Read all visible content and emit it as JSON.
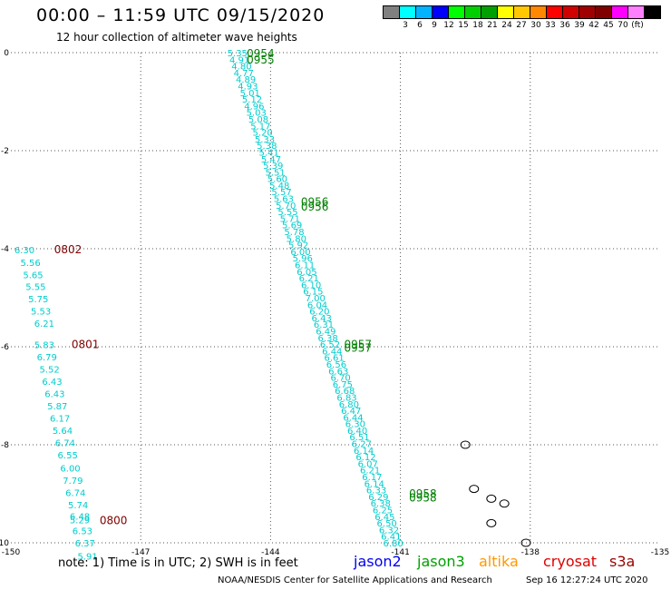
{
  "title": "00:00 – 11:59 UTC 09/15/2020",
  "subtitle": "12 hour collection of altimeter wave heights",
  "legend": {
    "colors": [
      "#808080",
      "#00ffff",
      "#00b4ff",
      "#0000ff",
      "#00ff00",
      "#00d000",
      "#00a000",
      "#ffff00",
      "#ffc800",
      "#ff8800",
      "#ff0000",
      "#d00000",
      "#a00000",
      "#800000",
      "#ff00ff",
      "#ff80ff",
      "#000000"
    ],
    "labels": [
      "3",
      "6",
      "9",
      "12",
      "15",
      "18",
      "21",
      "24",
      "27",
      "30",
      "33",
      "36",
      "39",
      "42",
      "45",
      "70",
      "(ft)"
    ]
  },
  "axes": {
    "x_ticks": [
      "-150",
      "-147",
      "-144",
      "-141",
      "-138",
      "-135"
    ],
    "y_ticks": [
      "0",
      "-2",
      "-4",
      "-6",
      "-8",
      "-10"
    ]
  },
  "chart_data": {
    "type": "scatter",
    "xlim": [
      -150,
      -135
    ],
    "ylim": [
      -10,
      0
    ],
    "grid": true,
    "tracks": [
      {
        "satellite": "jason3",
        "color": "#00cccc",
        "start": [
          -145.0,
          0.0
        ],
        "end": [
          -141.4,
          -10.0
        ],
        "swh": [
          "5.35",
          "4.91",
          "4.80",
          "4.77",
          "4.89",
          "4.93",
          "5.01",
          "5.12",
          "4.96",
          "5.03",
          "5.08",
          "5.17",
          "5.20",
          "5.33",
          "5.38",
          "5.41",
          "5.47",
          "5.39",
          "5.51",
          "5.60",
          "5.48",
          "5.57",
          "5.63",
          "5.70",
          "5.55",
          "5.71",
          "5.69",
          "5.78",
          "5.80",
          "5.92",
          "6.00",
          "5.96",
          "6.11",
          "6.05",
          "6.21",
          "6.10",
          "6.15",
          "7.00",
          "6.04",
          "6.20",
          "6.43",
          "6.31",
          "6.49",
          "6.38",
          "6.52",
          "6.44",
          "6.61",
          "6.56",
          "6.63",
          "6.70",
          "6.75",
          "6.68",
          "6.83",
          "6.80",
          "6.47",
          "6.44",
          "6.30",
          "6.40",
          "6.51",
          "6.27",
          "6.14",
          "6.12",
          "6.07",
          "6.21",
          "6.17",
          "6.14",
          "6.33",
          "6.29",
          "6.38",
          "6.25",
          "6.45",
          "6.50",
          "6.32",
          "6.41",
          "6.80"
        ],
        "time_labels": [
          {
            "text": "0954",
            "x": -144.55,
            "y": -0.02
          },
          {
            "text": "0955",
            "x": -144.55,
            "y": -0.15
          },
          {
            "text": "0956",
            "x": -143.3,
            "y": -3.05
          },
          {
            "text": "0956",
            "x": -143.3,
            "y": -3.15
          },
          {
            "text": "0957",
            "x": -142.3,
            "y": -5.95
          },
          {
            "text": "0957",
            "x": -142.3,
            "y": -6.03
          },
          {
            "text": "0958",
            "x": -140.8,
            "y": -9.0
          },
          {
            "text": "0958",
            "x": -140.8,
            "y": -9.08
          }
        ]
      },
      {
        "satellite": "cryosat",
        "color": "#00cccc",
        "points": [
          {
            "x": -149.92,
            "y": -4.02,
            "v": "6.30"
          },
          {
            "x": -149.78,
            "y": -4.28,
            "v": "5.56"
          },
          {
            "x": -149.72,
            "y": -4.53,
            "v": "5.65"
          },
          {
            "x": -149.66,
            "y": -4.77,
            "v": "5.55"
          },
          {
            "x": -149.6,
            "y": -5.02,
            "v": "5.75"
          },
          {
            "x": -149.54,
            "y": -5.27,
            "v": "5.53"
          },
          {
            "x": -149.46,
            "y": -5.52,
            "v": "6.21"
          },
          {
            "x": -149.46,
            "y": -5.95,
            "v": "5.83"
          },
          {
            "x": -149.4,
            "y": -6.2,
            "v": "6.79"
          },
          {
            "x": -149.34,
            "y": -6.45,
            "v": "5.52"
          },
          {
            "x": -149.28,
            "y": -6.7,
            "v": "6.43"
          },
          {
            "x": -149.22,
            "y": -6.95,
            "v": "6.43"
          },
          {
            "x": -149.16,
            "y": -7.2,
            "v": "5.87"
          },
          {
            "x": -149.1,
            "y": -7.45,
            "v": "6.17"
          },
          {
            "x": -149.04,
            "y": -7.7,
            "v": "5.64"
          },
          {
            "x": -148.98,
            "y": -7.95,
            "v": "6.74"
          },
          {
            "x": -148.92,
            "y": -8.2,
            "v": "6.55"
          },
          {
            "x": -148.86,
            "y": -8.47,
            "v": "6.00"
          },
          {
            "x": -148.8,
            "y": -8.72,
            "v": "7.79"
          },
          {
            "x": -148.74,
            "y": -8.97,
            "v": "6.74"
          },
          {
            "x": -148.68,
            "y": -9.22,
            "v": "5.74"
          },
          {
            "x": -148.64,
            "y": -9.45,
            "v": "6.48"
          },
          {
            "x": -148.64,
            "y": -9.53,
            "v": "5.29"
          },
          {
            "x": -148.58,
            "y": -9.75,
            "v": "6.53"
          },
          {
            "x": -148.52,
            "y": -10.0,
            "v": "6.37"
          },
          {
            "x": -148.46,
            "y": -10.27,
            "v": "5.91"
          }
        ],
        "time_labels": [
          {
            "text": "0802",
            "x": -149.0,
            "y": -4.02
          },
          {
            "text": "0801",
            "x": -148.6,
            "y": -5.95
          },
          {
            "text": "0800",
            "x": -147.95,
            "y": -9.55
          }
        ]
      }
    ],
    "islands": [
      {
        "x": -139.5,
        "y": -8.0
      },
      {
        "x": -139.3,
        "y": -8.9
      },
      {
        "x": -138.9,
        "y": -9.1
      },
      {
        "x": -138.6,
        "y": -9.2
      },
      {
        "x": -138.9,
        "y": -9.6
      },
      {
        "x": -138.1,
        "y": -10.0
      }
    ]
  },
  "note": "note:  1) Time is in UTC;  2) SWH is in feet",
  "satellites": [
    {
      "name": "jason2",
      "color": "#0000ee"
    },
    {
      "name": "jason3",
      "color": "#00a000"
    },
    {
      "name": "altika",
      "color": "#ff9900"
    },
    {
      "name": "cryosat",
      "color": "#dd0000"
    },
    {
      "name": "s3a",
      "color": "#990000"
    }
  ],
  "footer_left": "NOAA/NESDIS Center for Satellite Applications and Research",
  "footer_right": "Sep 16 12:27:24 UTC 2020"
}
